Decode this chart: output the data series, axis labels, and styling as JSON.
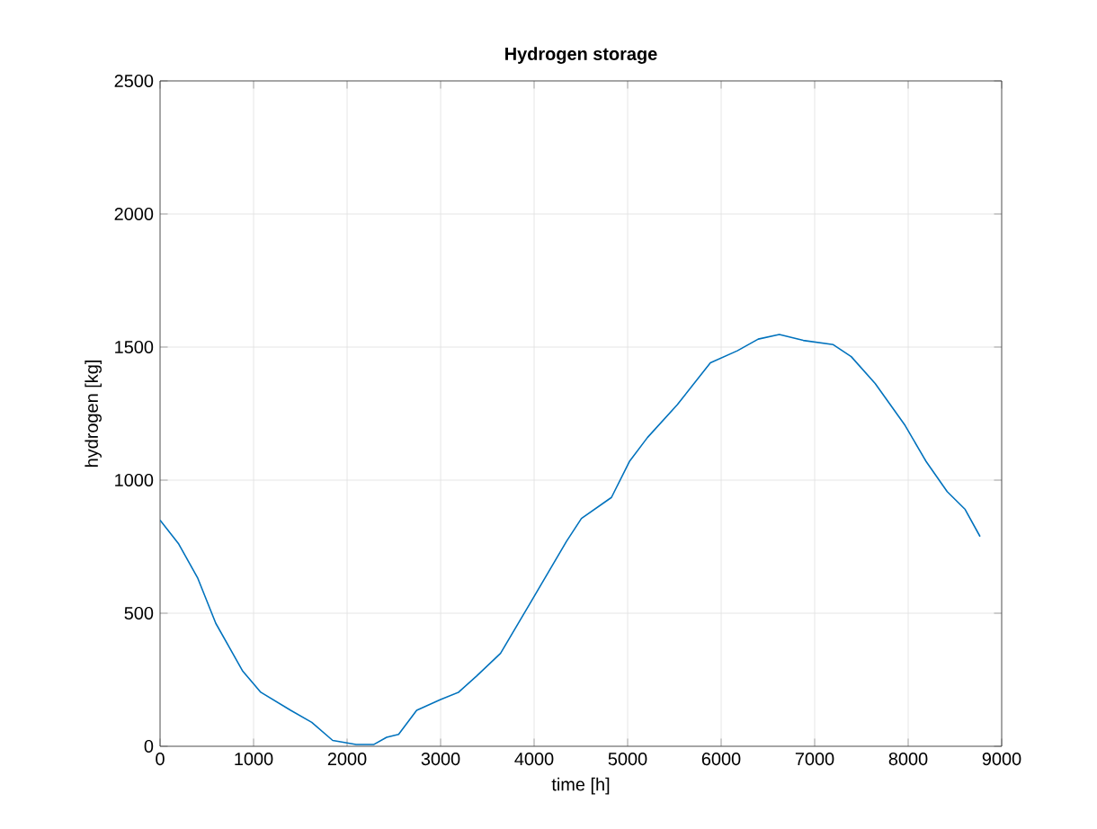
{
  "chart_data": {
    "type": "line",
    "title": "Hydrogen storage",
    "xlabel": "time [h]",
    "ylabel": "hydrogen [kg]",
    "x": [
      0,
      200,
      404,
      596,
      885,
      1077,
      1397,
      1622,
      1846,
      2096,
      2288,
      2423,
      2551,
      2744,
      3000,
      3192,
      3385,
      3641,
      3962,
      4346,
      4506,
      4827,
      5019,
      5212,
      5532,
      5885,
      6173,
      6397,
      6622,
      6878,
      7199,
      7391,
      7647,
      7968,
      8192,
      8417,
      8609,
      8769
    ],
    "series": [
      {
        "color": "#0072bd",
        "values": [
          850,
          760,
          631,
          462,
          282,
          203,
          135,
          90,
          22,
          7,
          7,
          34,
          45,
          135,
          176,
          203,
          264,
          349,
          540,
          770,
          856,
          935,
          1070,
          1160,
          1284,
          1441,
          1486,
          1530,
          1547,
          1525,
          1509,
          1464,
          1363,
          1205,
          1070,
          957,
          890,
          788
        ]
      }
    ],
    "xlim": [
      0,
      9000
    ],
    "ylim": [
      0,
      2500
    ],
    "xticks": [
      0,
      1000,
      2000,
      3000,
      4000,
      5000,
      6000,
      7000,
      8000,
      9000
    ],
    "yticks": [
      0,
      500,
      1000,
      1500,
      2000,
      2500
    ],
    "grid": true,
    "marker": "none",
    "line_style": "solid"
  }
}
